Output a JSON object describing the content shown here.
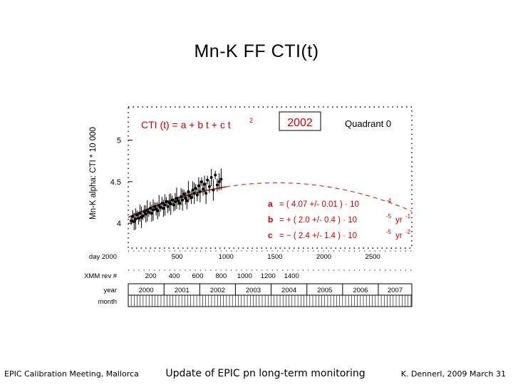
{
  "slide": {
    "title": "Mn-K   FF  CTI(t)",
    "footer_left": "EPIC Calibration Meeting, Mallorca",
    "footer_center": "Update of EPIC pn long-term monitoring",
    "footer_right": "K. Dennerl, 2009 March 31"
  },
  "colors": {
    "fit": "#c0392b",
    "data": "#000000",
    "accent": "#cc0000"
  },
  "chart_data": {
    "type": "scatter",
    "title": "",
    "ylabel": "Mn-K  alpha:  CTI * 10 000",
    "xlabel": "",
    "xlim": [
      0,
      2900
    ],
    "ylim": [
      3.7,
      5.4
    ],
    "y_ticks": [
      "5",
      "4.5",
      "4"
    ],
    "y_tick_values": [
      5,
      4.5,
      4
    ],
    "x_axis_rows": [
      {
        "label": "day 2000",
        "ticks": [
          "500",
          "1000",
          "1500",
          "2000",
          "2500"
        ],
        "tick_days": [
          500,
          1000,
          1500,
          2000,
          2500
        ]
      },
      {
        "label": "XMM rev #",
        "ticks": [
          "200",
          "400",
          "600",
          "800",
          "1000",
          "1200",
          "1400"
        ],
        "tick_days": [
          230,
          470,
          710,
          950,
          1190,
          1430,
          1670
        ]
      }
    ],
    "year_row": {
      "label": "year",
      "years": [
        "2000",
        "2001",
        "2002",
        "2003",
        "2004",
        "2005",
        "2006",
        "2007"
      ],
      "start_days": [
        0,
        366,
        731,
        1096,
        1461,
        1827,
        2192,
        2557
      ]
    },
    "month_row": {
      "label": "month"
    },
    "annotations": {
      "formula": "CTI (t)  =  a + b t + c t",
      "formula_exp": "2",
      "year_box": "2002",
      "quadrant": "Quadrant 0",
      "params": [
        {
          "name": "a",
          "text": "=  (  4.07 +/-  0.01 )  · 10",
          "exp": "-4",
          "unit": ""
        },
        {
          "name": "b",
          "text": "=  + ( 2.0 +/- 0.4 )  · 10",
          "exp": "-5",
          "unit": "yr",
          "unit_exp": "-1"
        },
        {
          "name": "c",
          "text": "=  −  ( 2.4 +/- 1.4 )  · 10",
          "exp": "-5",
          "unit": "yr",
          "unit_exp": "-2"
        }
      ]
    },
    "fit": {
      "a": 4.07,
      "b": 0.2,
      "c": -0.024,
      "fit_end_day": 1000
    },
    "series": [
      {
        "x": [
          30,
          45,
          60,
          75,
          90,
          105,
          120,
          135,
          150,
          165,
          180,
          195,
          210,
          225,
          240,
          255,
          270,
          285,
          300,
          315,
          330,
          345,
          360,
          375,
          390,
          405,
          420,
          435,
          450,
          465,
          480,
          495,
          510,
          525,
          540,
          555,
          570,
          585,
          600,
          615,
          630,
          645,
          660,
          675,
          690,
          705,
          720,
          735,
          750,
          765,
          780,
          795,
          810,
          830,
          850,
          870,
          890,
          910,
          930,
          950
        ],
        "y": [
          4.03,
          4.08,
          4.02,
          4.05,
          4.1,
          4.06,
          4.12,
          4.07,
          4.09,
          4.14,
          4.11,
          4.15,
          4.13,
          4.18,
          4.12,
          4.16,
          4.2,
          4.17,
          4.15,
          4.21,
          4.19,
          4.24,
          4.18,
          4.22,
          4.26,
          4.2,
          4.25,
          4.23,
          4.28,
          4.22,
          4.26,
          4.3,
          4.27,
          4.24,
          4.32,
          4.28,
          4.35,
          4.3,
          4.27,
          4.38,
          4.33,
          4.31,
          4.4,
          4.36,
          4.42,
          4.34,
          4.45,
          4.38,
          4.5,
          4.41,
          4.47,
          4.36,
          4.52,
          4.44,
          4.55,
          4.4,
          4.58,
          4.46,
          4.5,
          4.53
        ]
      }
    ]
  }
}
